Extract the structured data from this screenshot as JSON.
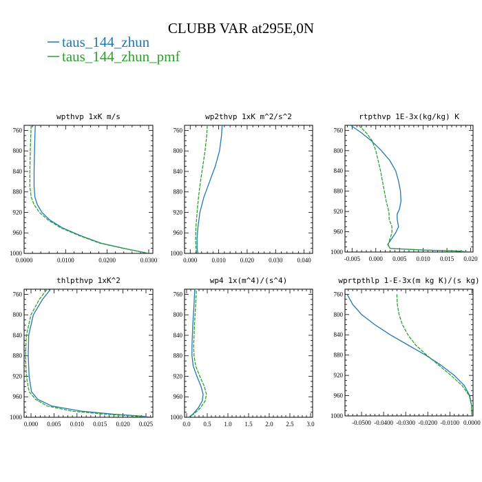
{
  "figure": {
    "title": "CLUBB VAR at295E,0N",
    "legend": [
      {
        "label": "taus_144_zhun",
        "color": "#1f77b4"
      },
      {
        "label": "taus_144_zhun_pmf",
        "color": "#2ca02c"
      }
    ]
  },
  "chart_data": [
    {
      "type": "line",
      "title": "wpthvp  1xK m/s",
      "ylim": [
        1000,
        750
      ],
      "yticks": [
        "760",
        "800",
        "840",
        "880",
        "920",
        "960",
        "1000"
      ],
      "xlim": [
        0,
        0.031
      ],
      "xticks": [
        "0.0000",
        "0.0100",
        "0.0200",
        "0.0300"
      ],
      "series": [
        {
          "name": "taus_144_zhun",
          "color": "#1f77b4",
          "x": [
            0.0027,
            0.0026,
            0.0025,
            0.0024,
            0.0024,
            0.0026,
            0.0032,
            0.0043,
            0.0062,
            0.0092,
            0.0135,
            0.0185,
            0.024,
            0.03
          ],
          "y": [
            750,
            770,
            800,
            840,
            870,
            890,
            905,
            920,
            935,
            950,
            965,
            980,
            990,
            1000
          ]
        },
        {
          "name": "taus_144_zhun_pmf",
          "color": "#2ca02c",
          "x": [
            0.0017,
            0.0016,
            0.0015,
            0.0014,
            0.0014,
            0.0017,
            0.0024,
            0.0037,
            0.0058,
            0.0088,
            0.0132,
            0.0182,
            0.0238,
            0.0299
          ],
          "y": [
            750,
            770,
            800,
            840,
            870,
            890,
            905,
            920,
            935,
            950,
            965,
            980,
            990,
            1000
          ]
        }
      ]
    },
    {
      "type": "line",
      "title": "wp2thvp  1xK m^2/s^2",
      "ylim": [
        1000,
        750
      ],
      "yticks": [
        "760",
        "800",
        "840",
        "880",
        "920",
        "960",
        "1000"
      ],
      "xlim": [
        -0.002,
        0.043
      ],
      "xticks": [
        "0.000",
        "0.010",
        "0.020",
        "0.030",
        "0.040"
      ],
      "series": [
        {
          "name": "taus_144_zhun",
          "color": "#1f77b4",
          "x": [
            0.0112,
            0.011,
            0.0103,
            0.0088,
            0.0068,
            0.0048,
            0.0034,
            0.0027,
            0.0024,
            0.0024,
            0.0025,
            0.0028
          ],
          "y": [
            750,
            770,
            800,
            830,
            860,
            890,
            920,
            950,
            970,
            990,
            995,
            1000
          ]
        },
        {
          "name": "taus_144_zhun_pmf",
          "color": "#2ca02c",
          "x": [
            0.006,
            0.0058,
            0.0052,
            0.0044,
            0.0036,
            0.0029,
            0.0024,
            0.002,
            0.0019,
            0.002,
            0.0021,
            0.0023
          ],
          "y": [
            750,
            770,
            800,
            830,
            860,
            890,
            920,
            950,
            970,
            990,
            995,
            1000
          ]
        }
      ]
    },
    {
      "type": "line",
      "title": "rtpthvp  1E-3x(kg/kg) K",
      "ylim": [
        1000,
        750
      ],
      "yticks": [
        "760",
        "800",
        "840",
        "880",
        "920",
        "960",
        "1000"
      ],
      "xlim": [
        -0.0065,
        0.0205
      ],
      "xticks": [
        "-0.005",
        "0.000",
        "0.005",
        "0.010",
        "0.015",
        "0.020"
      ],
      "series": [
        {
          "name": "taus_144_zhun",
          "color": "#1f77b4",
          "x": [
            -0.0053,
            -0.003,
            -0.001,
            0.0012,
            0.003,
            0.0042,
            0.0048,
            0.0052,
            0.0053,
            0.005,
            0.0045,
            0.0045,
            0.0048,
            0.0042,
            0.0025,
            0.003,
            0.01,
            0.017,
            0.02
          ],
          "y": [
            750,
            765,
            780,
            800,
            820,
            840,
            860,
            880,
            900,
            915,
            925,
            935,
            950,
            962,
            985,
            993,
            996,
            998,
            1000
          ]
        },
        {
          "name": "taus_144_zhun_pmf",
          "color": "#2ca02c",
          "x": [
            -0.0036,
            -0.002,
            -0.0008,
            0.0,
            0.0005,
            0.001,
            0.0014,
            0.0018,
            0.0022,
            0.0026,
            0.0028,
            0.0028,
            0.0034,
            0.0034,
            0.0026,
            0.003,
            0.01,
            0.017,
            0.02
          ],
          "y": [
            750,
            765,
            780,
            800,
            820,
            840,
            860,
            880,
            900,
            915,
            925,
            935,
            950,
            962,
            985,
            993,
            996,
            998,
            1000
          ]
        }
      ]
    },
    {
      "type": "line",
      "title": "thlpthvp  1xK^2",
      "ylim": [
        1000,
        750
      ],
      "yticks": [
        "760",
        "800",
        "840",
        "880",
        "920",
        "960",
        "1000"
      ],
      "xlim": [
        -0.0015,
        0.0265
      ],
      "xticks": [
        "0.000",
        "0.005",
        "0.010",
        "0.015",
        "0.020",
        "0.025"
      ],
      "series": [
        {
          "name": "taus_144_zhun",
          "color": "#1f77b4",
          "x": [
            0.0048,
            0.0025,
            0.0005,
            -0.0005,
            -0.0006,
            -0.0004,
            0.0001,
            0.0015,
            0.0045,
            0.011,
            0.018,
            0.0245,
            0.026
          ],
          "y": [
            744,
            770,
            800,
            840,
            880,
            920,
            950,
            965,
            978,
            988,
            994,
            998,
            1000
          ]
        },
        {
          "name": "taus_144_zhun_pmf",
          "color": "#2ca02c",
          "x": [
            0.004,
            0.0018,
            0.0,
            -0.001,
            -0.0012,
            -0.001,
            -0.0004,
            0.001,
            0.0035,
            0.009,
            0.016,
            0.023,
            0.0255
          ],
          "y": [
            744,
            770,
            800,
            840,
            880,
            920,
            950,
            965,
            978,
            988,
            994,
            998,
            1000
          ]
        }
      ]
    },
    {
      "type": "line",
      "title": "wp4  1x(m^4)/(s^4)",
      "ylim": [
        1000,
        750
      ],
      "yticks": [
        "760",
        "800",
        "840",
        "880",
        "920",
        "960",
        "1000"
      ],
      "xlim": [
        -0.05,
        3.05
      ],
      "xticks": [
        "0.0",
        "0.5",
        "1.0",
        "1.5",
        "2.0",
        "2.5",
        "3.0"
      ],
      "series": [
        {
          "name": "taus_144_zhun",
          "color": "#1f77b4",
          "x": [
            0.2,
            0.18,
            0.15,
            0.13,
            0.13,
            0.16,
            0.25,
            0.35,
            0.4,
            0.38,
            0.28,
            0.15,
            0.05
          ],
          "y": [
            744,
            780,
            820,
            860,
            880,
            900,
            920,
            940,
            955,
            968,
            982,
            994,
            1000
          ]
        },
        {
          "name": "taus_144_zhun_pmf",
          "color": "#2ca02c",
          "x": [
            0.24,
            0.22,
            0.19,
            0.17,
            0.18,
            0.22,
            0.32,
            0.43,
            0.48,
            0.45,
            0.33,
            0.17,
            0.05
          ],
          "y": [
            744,
            780,
            820,
            860,
            880,
            900,
            920,
            940,
            955,
            968,
            982,
            994,
            1000
          ]
        }
      ]
    },
    {
      "type": "line",
      "title": "wprtpthlp  1-E-3x(m kg K)/(s kg)",
      "ylim": [
        1000,
        750
      ],
      "yticks": [
        "760",
        "800",
        "840",
        "880",
        "920",
        "960",
        "1000"
      ],
      "xlim": [
        -0.0575,
        0.0005
      ],
      "xticks": [
        "-0.0500",
        "-0.0400",
        "-0.0300",
        "-0.0200",
        "-0.0100",
        "0.0000"
      ],
      "series": [
        {
          "name": "taus_144_zhun",
          "color": "#1f77b4",
          "x": [
            -0.0565,
            -0.054,
            -0.05,
            -0.044,
            -0.037,
            -0.029,
            -0.021,
            -0.014,
            -0.008,
            -0.0035,
            -0.001,
            -0.0002,
            0.0
          ],
          "y": [
            760,
            780,
            800,
            820,
            840,
            860,
            880,
            900,
            920,
            940,
            960,
            980,
            1000
          ]
        },
        {
          "name": "taus_144_zhun_pmf",
          "color": "#2ca02c",
          "x": [
            -0.034,
            -0.0338,
            -0.033,
            -0.0315,
            -0.029,
            -0.0255,
            -0.0205,
            -0.015,
            -0.0095,
            -0.0045,
            -0.0012,
            -0.0002,
            0.0
          ],
          "y": [
            760,
            780,
            800,
            820,
            840,
            860,
            880,
            900,
            920,
            940,
            960,
            980,
            1000
          ]
        }
      ]
    }
  ]
}
